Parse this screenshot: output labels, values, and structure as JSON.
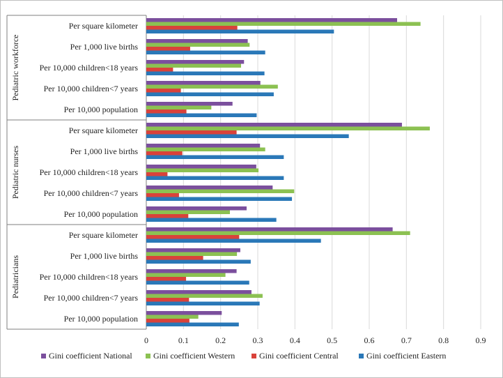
{
  "chart_data": {
    "type": "bar",
    "orientation": "horizontal",
    "title": "",
    "xlabel": "",
    "ylabel": "",
    "xlim": [
      0,
      0.9
    ],
    "x_ticks": [
      "0",
      "0.1",
      "0.2",
      "0.3",
      "0.4",
      "0.5",
      "0.6",
      "0.7",
      "0.8",
      "0.9"
    ],
    "grid": "vertical",
    "legend_position": "bottom",
    "legend": [
      "Gini coefficient National",
      "Gini coefficient Western",
      "Gini coefficient Central",
      "Gini coefficient Eastern"
    ],
    "colors": {
      "Gini coefficient National": "#7b4f9d",
      "Gini coefficient Western": "#8cc152",
      "Gini coefficient Central": "#d9423a",
      "Gini coefficient Eastern": "#2a78b8"
    },
    "groups": [
      {
        "name": "Pediatric workforce",
        "categories": [
          "Per square kilometer",
          "Per 1,000 live births",
          "Per 10,000 children<18 years",
          "Per 10,000 children<7 years",
          "Per 10,000 population"
        ],
        "series": [
          {
            "name": "Gini coefficient National",
            "values": [
              0.675,
              0.273,
              0.263,
              0.307,
              0.232
            ]
          },
          {
            "name": "Gini coefficient Western",
            "values": [
              0.738,
              0.278,
              0.255,
              0.354,
              0.175
            ]
          },
          {
            "name": "Gini coefficient Central",
            "values": [
              0.245,
              0.118,
              0.072,
              0.093,
              0.108
            ]
          },
          {
            "name": "Gini coefficient Eastern",
            "values": [
              0.505,
              0.32,
              0.318,
              0.343,
              0.297
            ]
          }
        ]
      },
      {
        "name": "Pediatric nurses",
        "categories": [
          "Per square kilometer",
          "Per 1,000 live births",
          "Per 10,000 children<18 years",
          "Per 10,000 children<7 years",
          "Per 10,000 population"
        ],
        "series": [
          {
            "name": "Gini coefficient National",
            "values": [
              0.688,
              0.306,
              0.296,
              0.34,
              0.27
            ]
          },
          {
            "name": "Gini coefficient Western",
            "values": [
              0.763,
              0.32,
              0.302,
              0.398,
              0.225
            ]
          },
          {
            "name": "Gini coefficient Central",
            "values": [
              0.243,
              0.097,
              0.057,
              0.088,
              0.113
            ]
          },
          {
            "name": "Gini coefficient Eastern",
            "values": [
              0.545,
              0.37,
              0.37,
              0.392,
              0.35
            ]
          }
        ]
      },
      {
        "name": "Pediatricians",
        "categories": [
          "Per square kilometer",
          "Per 1,000 live births",
          "Per 10,000 children<18 years",
          "Per 10,000 children<7 years",
          "Per 10,000 population"
        ],
        "series": [
          {
            "name": "Gini coefficient National",
            "values": [
              0.663,
              0.253,
              0.243,
              0.283,
              0.203
            ]
          },
          {
            "name": "Gini coefficient Western",
            "values": [
              0.71,
              0.244,
              0.213,
              0.313,
              0.14
            ]
          },
          {
            "name": "Gini coefficient Central",
            "values": [
              0.25,
              0.153,
              0.107,
              0.115,
              0.116
            ]
          },
          {
            "name": "Gini coefficient Eastern",
            "values": [
              0.47,
              0.281,
              0.277,
              0.305,
              0.249
            ]
          }
        ]
      }
    ]
  }
}
